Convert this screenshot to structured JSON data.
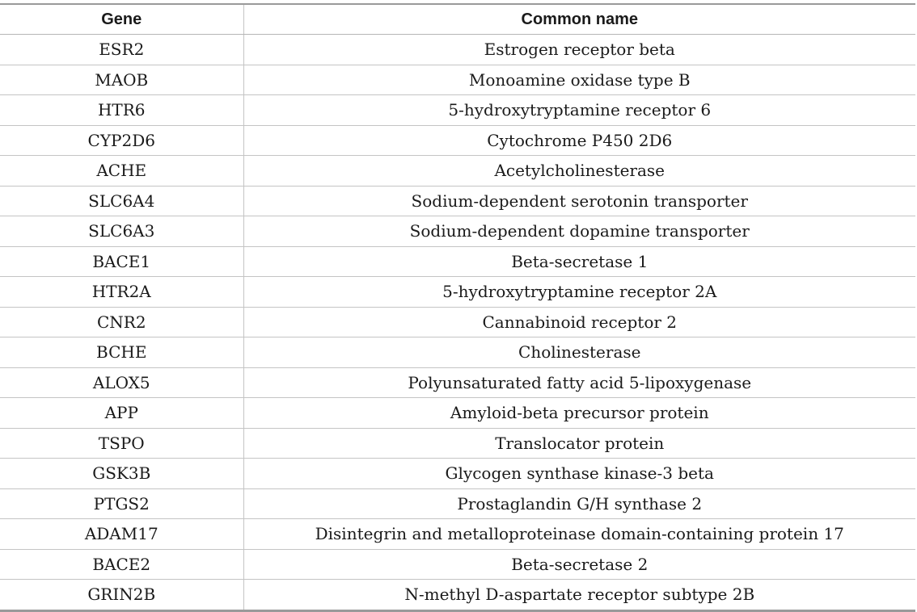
{
  "table": {
    "headers": [
      "Gene",
      "Common name"
    ],
    "rows": [
      {
        "gene": "ESR2",
        "name": "Estrogen receptor beta"
      },
      {
        "gene": "MAOB",
        "name": "Monoamine oxidase type B"
      },
      {
        "gene": "HTR6",
        "name": "5-hydroxytryptamine receptor 6"
      },
      {
        "gene": "CYP2D6",
        "name": "Cytochrome P450 2D6"
      },
      {
        "gene": "ACHE",
        "name": "Acetylcholinesterase"
      },
      {
        "gene": "SLC6A4",
        "name": "Sodium-dependent serotonin transporter"
      },
      {
        "gene": "SLC6A3",
        "name": "Sodium-dependent dopamine transporter"
      },
      {
        "gene": "BACE1",
        "name": "Beta-secretase 1"
      },
      {
        "gene": "HTR2A",
        "name": "5-hydroxytryptamine receptor 2A"
      },
      {
        "gene": "CNR2",
        "name": "Cannabinoid receptor 2"
      },
      {
        "gene": "BCHE",
        "name": "Cholinesterase"
      },
      {
        "gene": "ALOX5",
        "name": "Polyunsaturated fatty acid 5-lipoxygenase"
      },
      {
        "gene": "APP",
        "name": "Amyloid-beta precursor protein"
      },
      {
        "gene": "TSPO",
        "name": "Translocator protein"
      },
      {
        "gene": "GSK3B",
        "name": "Glycogen synthase kinase-3 beta"
      },
      {
        "gene": "PTGS2",
        "name": "Prostaglandin G/H synthase 2"
      },
      {
        "gene": "ADAM17",
        "name": "Disintegrin and metalloproteinase domain-containing protein 17"
      },
      {
        "gene": "BACE2",
        "name": "Beta-secretase 2"
      },
      {
        "gene": "GRIN2B",
        "name": "N-methyl D-aspartate receptor subtype 2B"
      }
    ]
  }
}
